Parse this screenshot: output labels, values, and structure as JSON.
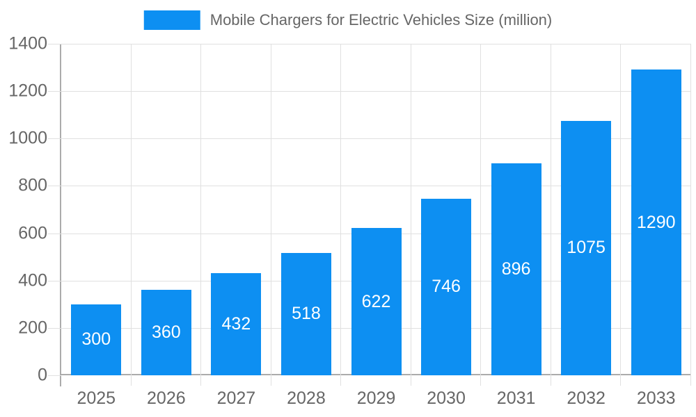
{
  "chart_data": {
    "type": "bar",
    "title": "Mobile Chargers for Electric Vehicles Size (million)",
    "series_name": "Mobile Chargers for Electric Vehicles Size (million)",
    "categories": [
      "2025",
      "2026",
      "2027",
      "2028",
      "2029",
      "2030",
      "2031",
      "2032",
      "2033"
    ],
    "values": [
      300,
      360,
      432,
      518,
      622,
      746,
      896,
      1075,
      1290
    ],
    "xlabel": "",
    "ylabel": "",
    "ylim": [
      0,
      1400
    ],
    "y_tick_step": 200,
    "y_ticks": [
      0,
      200,
      400,
      600,
      800,
      1000,
      1200,
      1400
    ],
    "grid": true,
    "legend_position": "top",
    "colors": {
      "bar": "#0d8ff2",
      "grid": "#e0e0e0",
      "axis": "#ababab",
      "tick_label": "#666666",
      "legend_text": "#666666",
      "bar_label": "#ffffff",
      "background": "#ffffff"
    }
  }
}
